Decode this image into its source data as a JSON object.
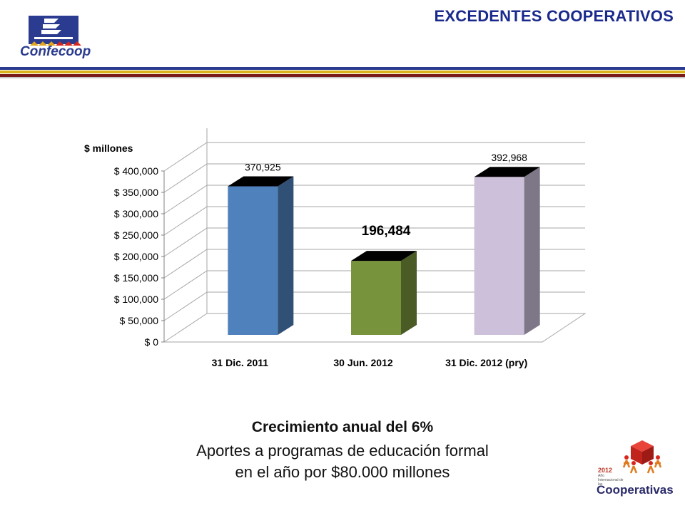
{
  "header": {
    "title": "EXCEDENTES COOPERATIVOS",
    "logo_text": "Confecoop"
  },
  "chart_data": {
    "type": "bar",
    "ylabel": "$ millones",
    "ylim": [
      0,
      400000
    ],
    "yticks": [
      "$ 0",
      "$ 50,000",
      "$ 100,000",
      "$ 150,000",
      "$ 200,000",
      "$ 250,000",
      "$ 300,000",
      "$ 350,000",
      "$ 400,000"
    ],
    "categories": [
      "31 Dic. 2011",
      "30 Jun. 2012",
      "31 Dic. 2012 (pry)"
    ],
    "values": [
      370925,
      196484,
      392968
    ],
    "labels": [
      "370,925",
      "196,484",
      "392,968"
    ],
    "colors": [
      "#4f81bd",
      "#77933c",
      "#ccc0da"
    ],
    "grid": true
  },
  "caption": {
    "line1": "Crecimiento anual del 6%",
    "line2": "Aportes a programas de educación formal",
    "line3": "en el año por $80.000 millones"
  },
  "badge": {
    "year": "2012",
    "subtitle": "Año Internacional de las",
    "word": "Cooperativas"
  }
}
